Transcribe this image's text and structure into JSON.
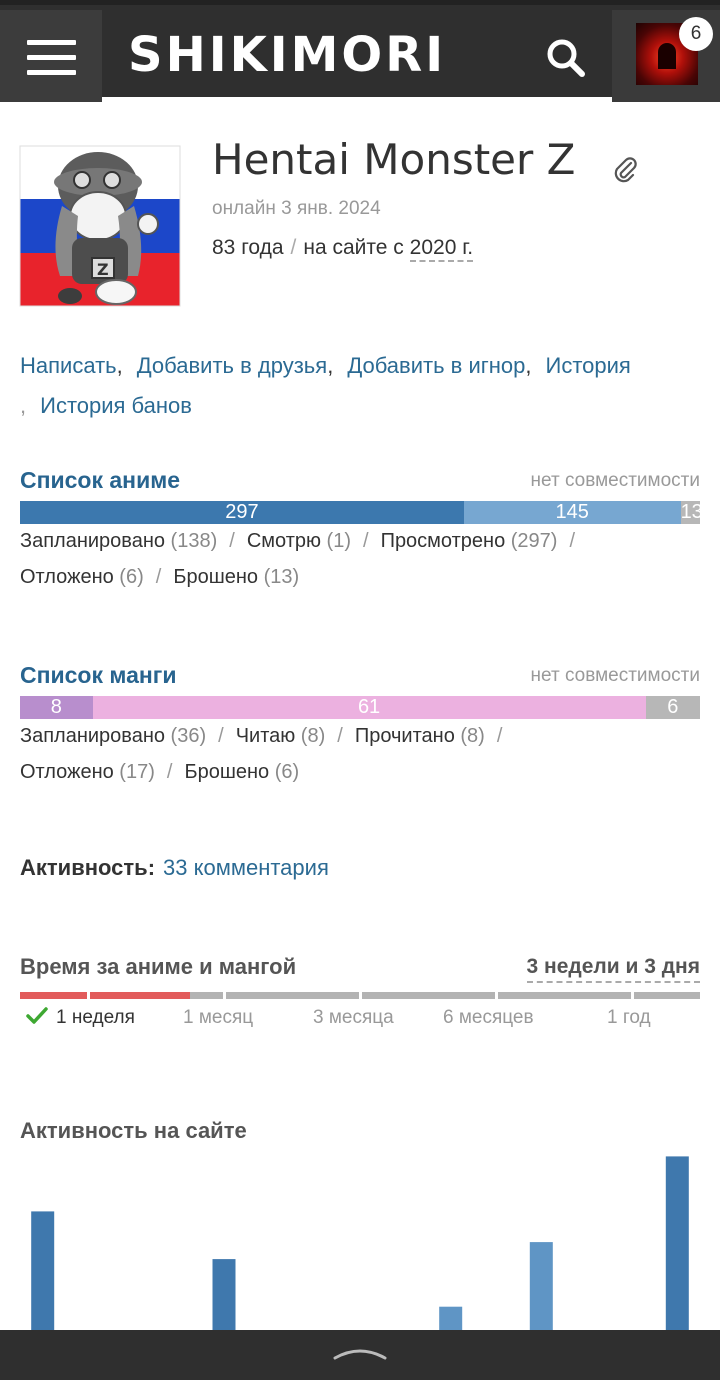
{
  "header": {
    "logo": "SHIKIMORI",
    "notifications_count": "6",
    "icons": [
      "menu-icon",
      "search-icon",
      "user-avatar"
    ],
    "colors": {
      "bar": "#2f2f2f"
    }
  },
  "profile": {
    "name": "Hentai Monster Z",
    "online": "онлайн 3 янв. 2024",
    "age": "83 года",
    "since_prefix": "на сайте с",
    "since_value": "2020 г."
  },
  "actions": [
    "Написать",
    "Добавить в друзья",
    "Добавить в игнор",
    "История",
    "История банов"
  ],
  "anime_list": {
    "title": "Список аниме",
    "compat": "нет совместимости",
    "bar": [
      {
        "label": "297",
        "value": 297,
        "color": "#3c78ae"
      },
      {
        "label": "145",
        "value": 145,
        "color": "#77a7d1"
      },
      {
        "label": "13",
        "value": 13,
        "color": "#b7b7b7"
      }
    ],
    "stats": [
      {
        "label": "Запланировано",
        "count": "138"
      },
      {
        "label": "Смотрю",
        "count": "1"
      },
      {
        "label": "Просмотрено",
        "count": "297"
      },
      {
        "label": "Отложено",
        "count": "6"
      },
      {
        "label": "Брошено",
        "count": "13"
      }
    ]
  },
  "manga_list": {
    "title": "Список манги",
    "compat": "нет совместимости",
    "bar": [
      {
        "label": "8",
        "value": 8,
        "color": "#b88ecd"
      },
      {
        "label": "61",
        "value": 61,
        "color": "#ecb1e0"
      },
      {
        "label": "6",
        "value": 6,
        "color": "#b7b7b7"
      }
    ],
    "stats": [
      {
        "label": "Запланировано",
        "count": "36"
      },
      {
        "label": "Читаю",
        "count": "8"
      },
      {
        "label": "Прочитано",
        "count": "8"
      },
      {
        "label": "Отложено",
        "count": "17"
      },
      {
        "label": "Брошено",
        "count": "6"
      }
    ]
  },
  "activity": {
    "label": "Активность:",
    "link": "33 комментария"
  },
  "time_spent": {
    "title": "Время за аниме и мангой",
    "total": "3 недели и 3 дня",
    "periods": [
      {
        "label": "1 неделя",
        "reached": true
      },
      {
        "label": "1 месяц",
        "reached": false
      },
      {
        "label": "3 месяца",
        "reached": false
      },
      {
        "label": "6 месяцев",
        "reached": false
      },
      {
        "label": "1 год",
        "reached": false
      }
    ],
    "colors": {
      "filled": "#e25b5b",
      "empty": "#b3b3b3",
      "check": "#3ea832"
    }
  },
  "site_activity": {
    "title": "Активность на сайте"
  },
  "chart_data": {
    "type": "bar",
    "values": [
      112,
      0,
      0,
      0,
      67,
      0,
      0,
      0,
      0,
      22,
      0,
      83,
      0,
      0,
      164
    ],
    "ylim": [
      0,
      170
    ],
    "colors": [
      "#3f78ad",
      "#5f95c5"
    ]
  }
}
